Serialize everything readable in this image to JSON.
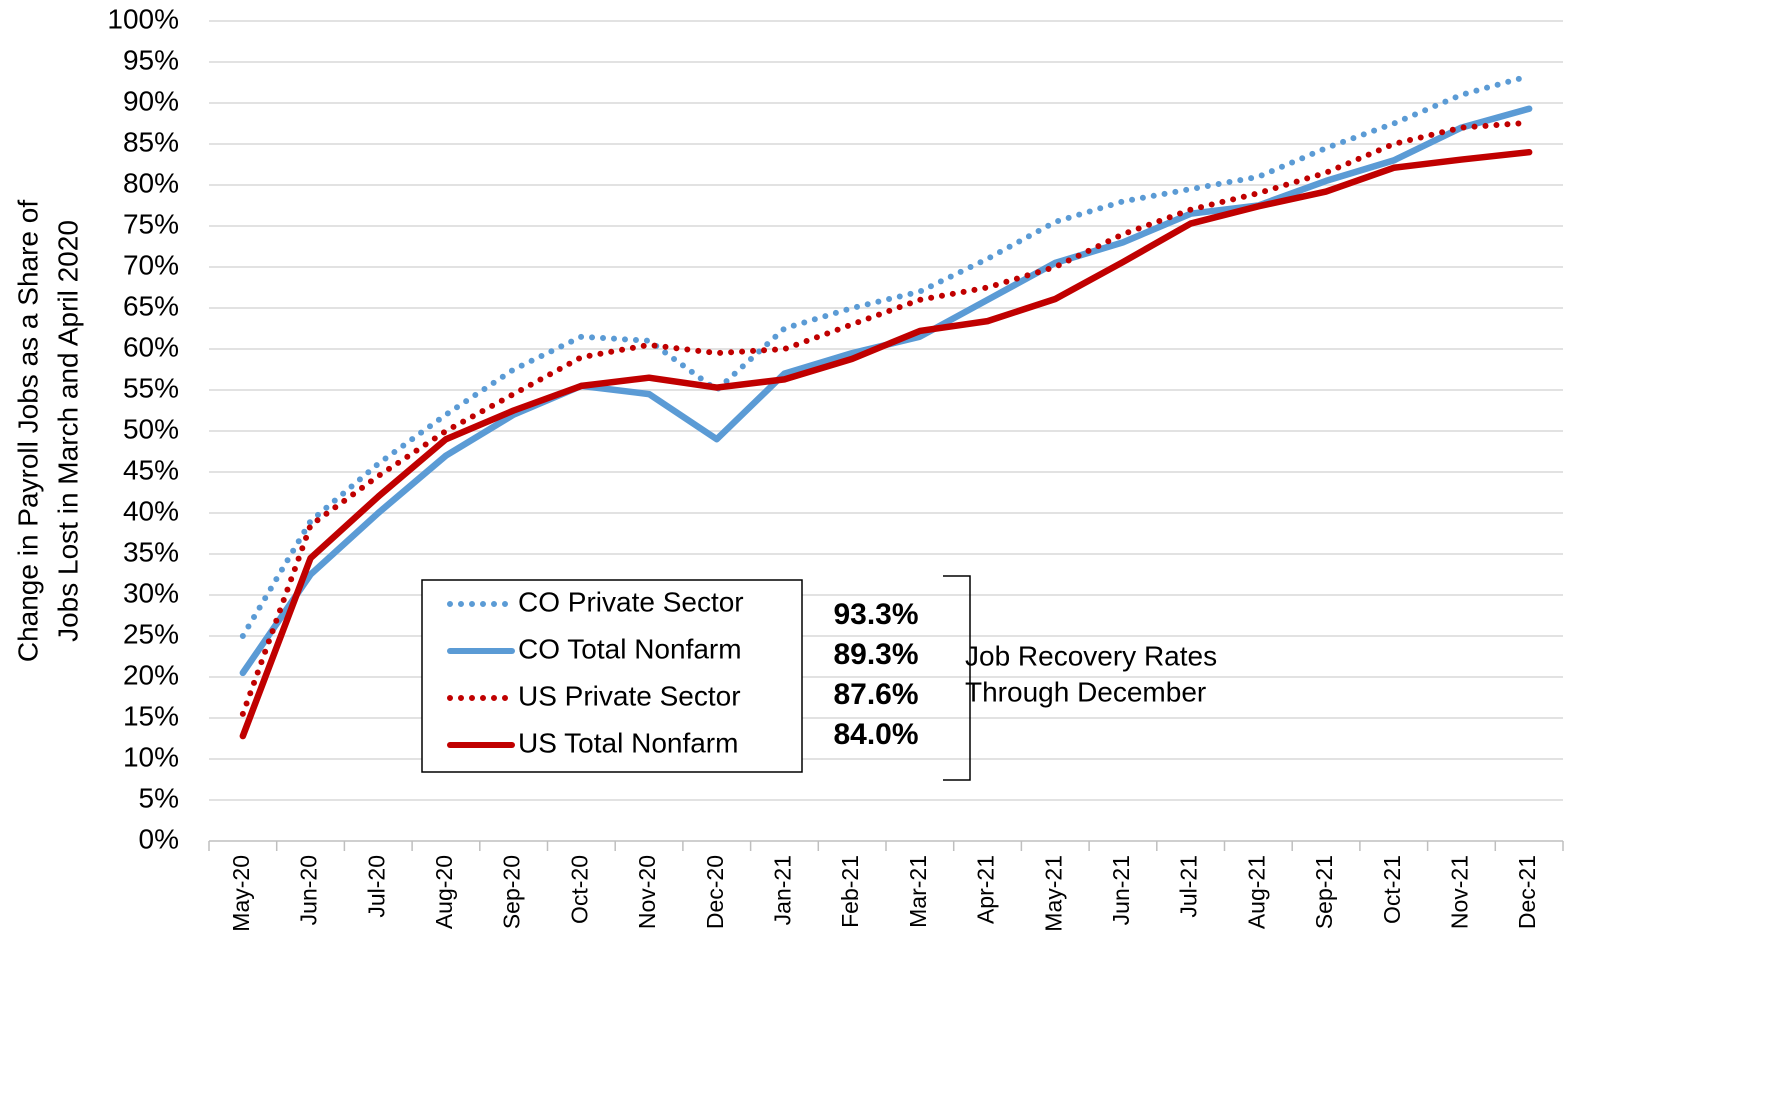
{
  "chart_data": {
    "type": "line",
    "y_label": [
      "Change in Payroll Jobs as a Share of",
      "Jobs Lost in March and April 2020"
    ],
    "categories": [
      "May-20",
      "Jun-20",
      "Jul-20",
      "Aug-20",
      "Sep-20",
      "Oct-20",
      "Nov-20",
      "Dec-20",
      "Jan-21",
      "Feb-21",
      "Mar-21",
      "Apr-21",
      "May-21",
      "Jun-21",
      "Jul-21",
      "Aug-21",
      "Sep-21",
      "Oct-21",
      "Nov-21",
      "Dec-21"
    ],
    "series": [
      {
        "name": "CO Private Sector",
        "color": "#5b9bd5",
        "style": "dotted",
        "values": [
          25,
          39,
          46,
          52,
          57.5,
          61.5,
          61,
          55,
          62.5,
          65,
          67,
          71,
          75.5,
          78,
          79.5,
          81,
          84.5,
          87.5,
          91,
          93.3
        ]
      },
      {
        "name": "CO Total Nonfarm",
        "color": "#5b9bd5",
        "style": "solid",
        "values": [
          20.5,
          32.5,
          40,
          47,
          52,
          55.5,
          54.5,
          49,
          57,
          59.5,
          61.5,
          66,
          70.5,
          73,
          76.5,
          77.5,
          80.5,
          83,
          87,
          89.3
        ]
      },
      {
        "name": "US Private Sector",
        "color": "#c00000",
        "style": "dotted",
        "values": [
          15.5,
          38.5,
          44.5,
          50,
          54.5,
          59,
          60.5,
          59.5,
          60,
          63,
          66,
          67.5,
          70,
          74,
          77,
          79,
          81.5,
          85,
          87,
          87.6
        ]
      },
      {
        "name": "US Total Nonfarm",
        "color": "#c00000",
        "style": "solid",
        "values": [
          12.8,
          34.5,
          42,
          49,
          52.5,
          55.5,
          56.5,
          55.3,
          56.3,
          58.8,
          62.2,
          63.4,
          66.1,
          70.6,
          75.3,
          77.4,
          79.2,
          82.1,
          83.1,
          84.0
        ]
      }
    ],
    "annotations": {
      "rates": [
        "93.3%",
        "89.3%",
        "87.6%",
        "84.0%"
      ],
      "text": [
        "Job Recovery Rates",
        "Through December"
      ]
    },
    "ylim": [
      0,
      100
    ],
    "yticks": [
      {
        "value": 0,
        "label": "0%"
      },
      {
        "value": 5,
        "label": "5%"
      },
      {
        "value": 10,
        "label": "10%"
      },
      {
        "value": 15,
        "label": "15%"
      },
      {
        "value": 20,
        "label": "20%"
      },
      {
        "value": 25,
        "label": "25%"
      },
      {
        "value": 30,
        "label": "30%"
      },
      {
        "value": 35,
        "label": "35%"
      },
      {
        "value": 40,
        "label": "40%"
      },
      {
        "value": 45,
        "label": "45%"
      },
      {
        "value": 50,
        "label": "50%"
      },
      {
        "value": 55,
        "label": "55%"
      },
      {
        "value": 60,
        "label": "60%"
      },
      {
        "value": 65,
        "label": "65%"
      },
      {
        "value": 70,
        "label": "70%"
      },
      {
        "value": 75,
        "label": "75%"
      },
      {
        "value": 80,
        "label": "80%"
      },
      {
        "value": 85,
        "label": "85%"
      },
      {
        "value": 90,
        "label": "90%"
      },
      {
        "value": 95,
        "label": "95%"
      },
      {
        "value": 100,
        "label": "100%"
      }
    ],
    "grid": true
  }
}
